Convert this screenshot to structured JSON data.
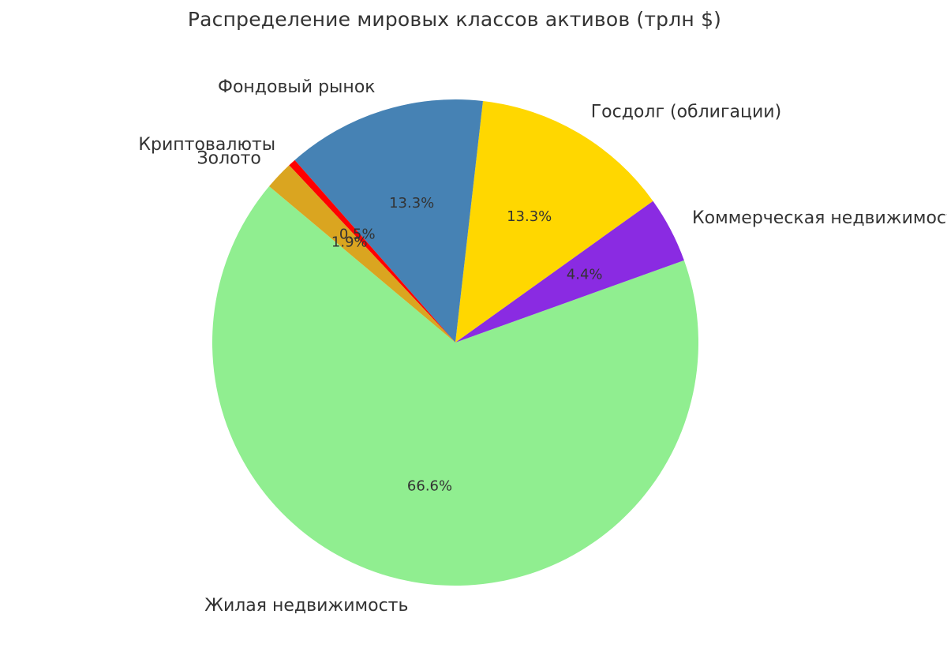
{
  "chart_data": {
    "type": "pie",
    "title": "Распределение мировых классов активов (трлн $)",
    "slices": [
      {
        "label": "Жилая недвижимость",
        "percent": 66.6,
        "percent_label": "66.6%",
        "color": "#90EE90"
      },
      {
        "label": "Коммерческая недвижимость",
        "percent": 4.4,
        "percent_label": "4.4%",
        "color": "#8A2BE2"
      },
      {
        "label": "Госдолг (облигации)",
        "percent": 13.3,
        "percent_label": "13.3%",
        "color": "#FFD700"
      },
      {
        "label": "Фондовый рынок",
        "percent": 13.3,
        "percent_label": "13.3%",
        "color": "#4682B4"
      },
      {
        "label": "Криптовалюты",
        "percent": 0.5,
        "percent_label": "0.5%",
        "color": "#FF0000"
      },
      {
        "label": "Золото",
        "percent": 1.9,
        "percent_label": "1.9%",
        "color": "#DAA520"
      }
    ],
    "start_angle_deg": 140,
    "direction": "counterclockwise"
  }
}
